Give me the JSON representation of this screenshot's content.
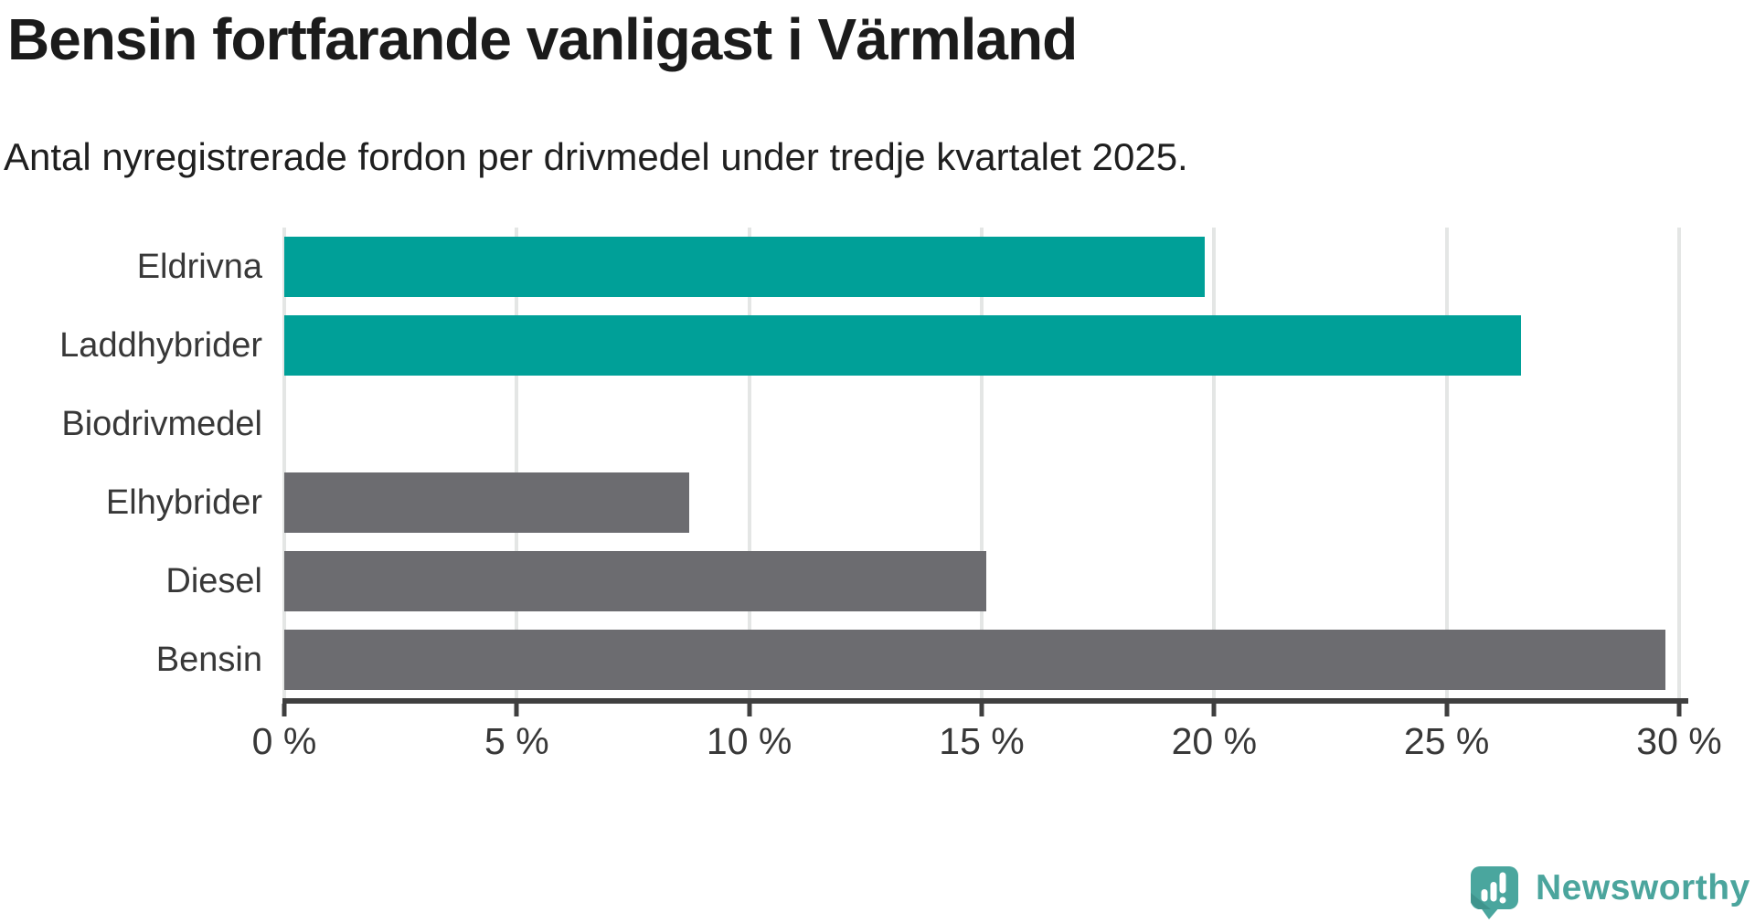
{
  "title": "Bensin fortfarande vanligast i Värmland",
  "subtitle": "Antal nyregistrerade fordon per drivmedel under tredje kvartalet 2025.",
  "logo": {
    "text": "Newsworthy",
    "color": "#4BA59D",
    "icon": "newsworthy-speech-bubble-bar-chart-icon"
  },
  "colors": {
    "highlight_teal": "#00A098",
    "default_gray": "#6C6C70",
    "gridline": "#E4E6E5",
    "axis": "#3F3F3F",
    "text_dark": "#383838"
  },
  "chart_data": {
    "type": "bar",
    "orientation": "horizontal",
    "title": "Bensin fortfarande vanligast i Värmland",
    "subtitle": "Antal nyregistrerade fordon per drivmedel under tredje kvartalet 2025.",
    "categories": [
      "Eldrivna",
      "Laddhybrider",
      "Biodrivmedel",
      "Elhybrider",
      "Diesel",
      "Bensin"
    ],
    "values": [
      19.8,
      26.6,
      0,
      8.7,
      15.1,
      29.7
    ],
    "unit": "%",
    "bar_colors": [
      "#00A098",
      "#00A098",
      "#6C6C70",
      "#6C6C70",
      "#6C6C70",
      "#6C6C70"
    ],
    "xlim": [
      0,
      30
    ],
    "x_tick_labels": [
      "0 %",
      "5 %",
      "10 %",
      "15 %",
      "20 %",
      "25 %",
      "30 %"
    ],
    "grid": true,
    "legend": "none",
    "xlabel": "",
    "ylabel": ""
  }
}
